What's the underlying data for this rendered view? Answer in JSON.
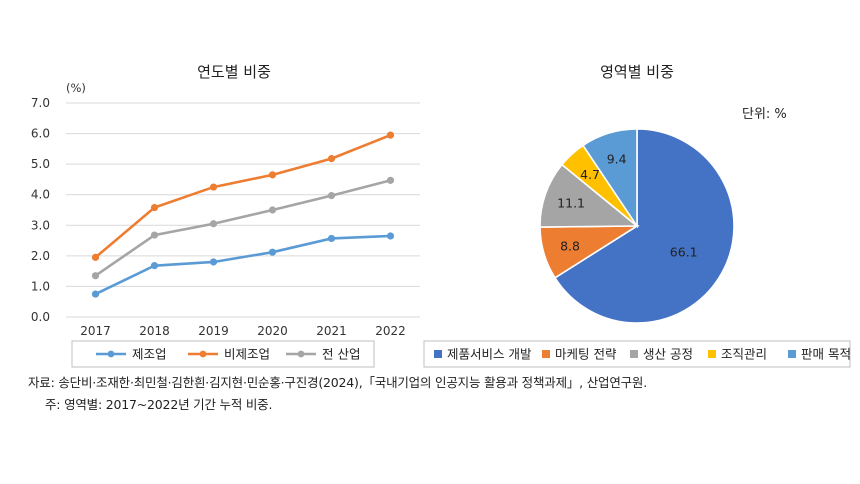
{
  "chart_data": [
    {
      "type": "line",
      "title": "연도별 비중",
      "unit_label": "(%)",
      "categories": [
        "2017",
        "2018",
        "2019",
        "2020",
        "2021",
        "2022"
      ],
      "ylim": [
        0,
        7
      ],
      "ytick_labels": [
        "0.0",
        "1.0",
        "2.0",
        "3.0",
        "4.0",
        "5.0",
        "6.0",
        "7.0"
      ],
      "grid": true,
      "legend_position": "bottom",
      "series": [
        {
          "name": "제조업",
          "color": "#5B9BD5",
          "values": [
            0.75,
            1.68,
            1.8,
            2.12,
            2.57,
            2.65
          ]
        },
        {
          "name": "비제조업",
          "color": "#ED7D31",
          "values": [
            1.95,
            3.58,
            4.25,
            4.65,
            5.18,
            5.95
          ]
        },
        {
          "name": "전 산업",
          "color": "#A5A5A5",
          "values": [
            1.35,
            2.68,
            3.05,
            3.5,
            3.97,
            4.47
          ]
        }
      ]
    },
    {
      "type": "pie",
      "title": "영역별 비중",
      "unit_note": "단위: %",
      "legend_position": "bottom",
      "slices": [
        {
          "label": "제품서비스 개발",
          "value": 66.1,
          "value_label": "66.1",
          "color": "#4472C4"
        },
        {
          "label": "마케팅 전략",
          "value": 8.8,
          "value_label": "8.8",
          "color": "#ED7D31"
        },
        {
          "label": "생산 공정",
          "value": 11.1,
          "value_label": "11.1",
          "color": "#A5A5A5"
        },
        {
          "label": "조직관리",
          "value": 4.7,
          "value_label": "4.7",
          "color": "#FFC000"
        },
        {
          "label": "판매 목적",
          "value": 9.4,
          "value_label": "9.4",
          "color": "#5B9BD5"
        }
      ]
    }
  ],
  "notes": {
    "source": "자료: 송단비·조재한·최민철·김한흰·김지현·민순홍·구진경(2024),「국내기업의 인공지능 활용과 정책과제」, 산업연구원.",
    "footnote": "주: 영역별: 2017~2022년 기간 누적 비중."
  }
}
